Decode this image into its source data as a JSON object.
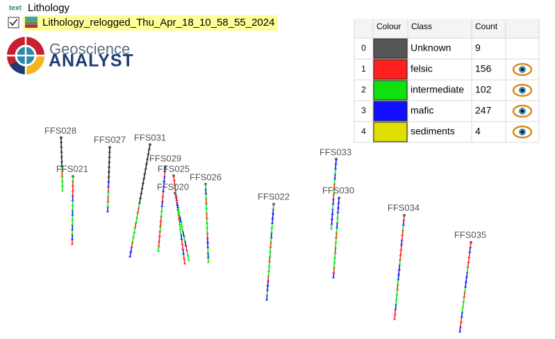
{
  "header": {
    "tag": "text",
    "layer": "Lithology",
    "item": "Lithology_relogged_Thu_Apr_18_10_58_55_2024"
  },
  "logo": {
    "line1": "Geoscience",
    "line2": "ANALYST"
  },
  "table": {
    "columns": [
      "Colour",
      "Class",
      "Count"
    ],
    "rows": [
      {
        "index": 0,
        "color": "#555555",
        "class": "Unknown",
        "count": 9,
        "visible": false
      },
      {
        "index": 1,
        "color": "#ff2020",
        "class": "felsic",
        "count": 156,
        "visible": true
      },
      {
        "index": 2,
        "color": "#10e010",
        "class": "intermediate",
        "count": 102,
        "visible": true
      },
      {
        "index": 3,
        "color": "#1010ff",
        "class": "mafic",
        "count": 247,
        "visible": true
      },
      {
        "index": 4,
        "color": "#e0e000",
        "class": "sediments",
        "count": 4,
        "visible": true
      }
    ]
  },
  "holes": [
    "FFS028",
    "FFS027",
    "FFS031",
    "FFS021",
    "FFS029",
    "FFS025",
    "FFS020",
    "FFS026",
    "FFS022",
    "FFS033",
    "FFS030",
    "FFS034",
    "FFS035"
  ]
}
